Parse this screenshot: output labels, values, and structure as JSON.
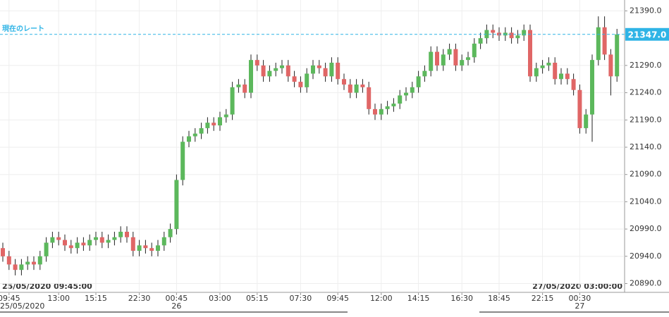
{
  "chart_data": {
    "type": "candlestick",
    "up_color": "#5cb85c",
    "down_color": "#e06666",
    "grid": true,
    "ylim": [
      20870,
      21410
    ],
    "yticks": [
      {
        "value": 20890,
        "label": "20890.0"
      },
      {
        "value": 20940,
        "label": "20940.0"
      },
      {
        "value": 20990,
        "label": "20990.0"
      },
      {
        "value": 21040,
        "label": "21040.0"
      },
      {
        "value": 21090,
        "label": "21090.0"
      },
      {
        "value": 21140,
        "label": "21140.0"
      },
      {
        "value": 21190,
        "label": "21190.0"
      },
      {
        "value": 21240,
        "label": "21240.0"
      },
      {
        "value": 21290,
        "label": "21290.0"
      },
      {
        "value": 21390,
        "label": "21390.0"
      }
    ],
    "current_rate": {
      "value": 21347,
      "label": "21347.0",
      "name": "現在のレート",
      "color": "#2fb4e6"
    },
    "start_time": "25/05/2020 09:45:00",
    "end_time": "27/05/2020 03:00:00",
    "categories": [
      null,
      "09:45",
      null,
      null,
      null,
      null,
      null,
      null,
      null,
      "13:00",
      null,
      null,
      null,
      null,
      null,
      "15:15",
      null,
      null,
      null,
      null,
      null,
      null,
      "22:30",
      null,
      null,
      null,
      null,
      null,
      "00:45",
      null,
      null,
      null,
      null,
      null,
      null,
      "03:00",
      null,
      null,
      null,
      null,
      null,
      "05:15",
      null,
      null,
      null,
      null,
      null,
      null,
      "07:30",
      null,
      null,
      null,
      null,
      null,
      "09:45",
      null,
      null,
      null,
      null,
      null,
      null,
      "12:00",
      null,
      null,
      null,
      null,
      null,
      "14:15",
      null,
      null,
      null,
      null,
      null,
      null,
      "16:30",
      null,
      null,
      null,
      null,
      null,
      "18:45",
      null,
      null,
      null,
      null,
      null,
      null,
      "22:15",
      null,
      null,
      null,
      null,
      null,
      "00:30",
      null,
      null,
      null,
      null,
      null,
      null
    ],
    "dates": [
      "25/05/2020",
      null,
      null,
      null,
      null,
      null,
      null,
      null,
      null,
      null,
      null,
      null,
      null,
      null,
      null,
      null,
      null,
      null,
      null,
      null,
      null,
      null,
      null,
      null,
      null,
      null,
      null,
      null,
      "26",
      null,
      null,
      null,
      null,
      null,
      null,
      null,
      null,
      null,
      null,
      null,
      null,
      null,
      null,
      null,
      null,
      null,
      null,
      null,
      null,
      null,
      null,
      null,
      null,
      null,
      null,
      null,
      null,
      null,
      null,
      null,
      null,
      null,
      null,
      null,
      null,
      null,
      null,
      null,
      null,
      null,
      null,
      null,
      null,
      null,
      null,
      null,
      null,
      null,
      null,
      null,
      null,
      null,
      null,
      null,
      null,
      null,
      null,
      null,
      null,
      null,
      null,
      null,
      null,
      "27",
      null,
      null,
      null,
      null,
      null,
      null
    ],
    "open": [
      20955,
      20940,
      20925,
      20915,
      20925,
      20930,
      20925,
      20940,
      20965,
      20975,
      20970,
      20960,
      20955,
      20965,
      20960,
      20970,
      20975,
      20965,
      20970,
      20975,
      20985,
      20975,
      20950,
      20960,
      20955,
      20950,
      20960,
      20975,
      20990,
      21080,
      21150,
      21160,
      21165,
      21175,
      21185,
      21180,
      21195,
      21200,
      21250,
      21255,
      21240,
      21300,
      21290,
      21270,
      21280,
      21285,
      21290,
      21270,
      21260,
      21250,
      21275,
      21290,
      21285,
      21270,
      21295,
      21265,
      21255,
      21240,
      21255,
      21250,
      21210,
      21200,
      21210,
      21215,
      21220,
      21235,
      21240,
      21250,
      21270,
      21280,
      21315,
      21290,
      21310,
      21320,
      21290,
      21300,
      21305,
      21330,
      21340,
      21355,
      21350,
      21345,
      21350,
      21340,
      21345,
      21355,
      21270,
      21285,
      21290,
      21295,
      21265,
      21275,
      21265,
      21245,
      21175,
      21200,
      21300,
      21360,
      21310,
      21270
    ],
    "high": [
      20965,
      20950,
      20935,
      20935,
      20940,
      20940,
      20950,
      20975,
      20985,
      20985,
      20980,
      20970,
      20975,
      20975,
      20980,
      20985,
      20985,
      20980,
      20985,
      20995,
      20995,
      20985,
      20970,
      20970,
      20965,
      20970,
      20985,
      21000,
      21090,
      21160,
      21170,
      21175,
      21185,
      21195,
      21195,
      21205,
      21210,
      21260,
      21265,
      21265,
      21310,
      21310,
      21300,
      21290,
      21295,
      21300,
      21300,
      21280,
      21270,
      21285,
      21300,
      21300,
      21295,
      21305,
      21305,
      21275,
      21265,
      21265,
      21265,
      21260,
      21220,
      21220,
      21225,
      21230,
      21245,
      21250,
      21260,
      21280,
      21290,
      21325,
      21325,
      21320,
      21330,
      21330,
      21310,
      21315,
      21340,
      21350,
      21365,
      21365,
      21360,
      21360,
      21360,
      21355,
      21365,
      21365,
      21295,
      21300,
      21305,
      21305,
      21285,
      21285,
      21275,
      21255,
      21210,
      21310,
      21380,
      21380,
      21320,
      21357
    ],
    "low": [
      20930,
      20915,
      20905,
      20905,
      20915,
      20915,
      20915,
      20930,
      20955,
      20960,
      20950,
      20945,
      20945,
      20950,
      20950,
      20960,
      20955,
      20955,
      20960,
      20965,
      20965,
      20940,
      20940,
      20945,
      20940,
      20940,
      20950,
      20965,
      20980,
      21070,
      21140,
      21150,
      21155,
      21165,
      21170,
      21170,
      21185,
      21190,
      21240,
      21230,
      21230,
      21280,
      21260,
      21260,
      21270,
      21275,
      21260,
      21250,
      21240,
      21240,
      21265,
      21275,
      21260,
      21260,
      21255,
      21245,
      21230,
      21230,
      21240,
      21200,
      21190,
      21190,
      21200,
      21205,
      21210,
      21225,
      21230,
      21240,
      21260,
      21270,
      21280,
      21280,
      21300,
      21280,
      21280,
      21290,
      21295,
      21320,
      21330,
      21340,
      21335,
      21335,
      21330,
      21330,
      21335,
      21260,
      21260,
      21275,
      21280,
      21255,
      21255,
      21255,
      21235,
      21165,
      21165,
      21150,
      21290,
      21300,
      21235,
      21260
    ],
    "close": [
      20940,
      20925,
      20915,
      20925,
      20930,
      20925,
      20940,
      20965,
      20975,
      20970,
      20960,
      20955,
      20965,
      20960,
      20970,
      20975,
      20965,
      20970,
      20975,
      20985,
      20975,
      20950,
      20960,
      20955,
      20950,
      20960,
      20975,
      20990,
      21080,
      21150,
      21160,
      21165,
      21175,
      21185,
      21180,
      21195,
      21200,
      21250,
      21255,
      21240,
      21300,
      21290,
      21270,
      21280,
      21285,
      21290,
      21270,
      21260,
      21250,
      21275,
      21290,
      21285,
      21270,
      21295,
      21265,
      21255,
      21240,
      21255,
      21250,
      21210,
      21200,
      21210,
      21215,
      21220,
      21235,
      21240,
      21250,
      21270,
      21280,
      21315,
      21290,
      21310,
      21320,
      21290,
      21300,
      21305,
      21330,
      21340,
      21355,
      21350,
      21345,
      21350,
      21340,
      21345,
      21355,
      21270,
      21285,
      21290,
      21295,
      21265,
      21275,
      21265,
      21245,
      21175,
      21200,
      21300,
      21360,
      21310,
      21270,
      21347
    ]
  }
}
